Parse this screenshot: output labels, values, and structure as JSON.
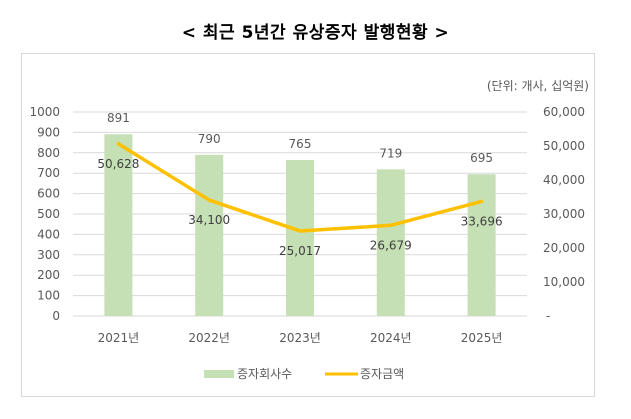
{
  "title": "< 최근 5년간 유상증자 발행현황 >",
  "unit_note": "(단위: 개사, 십억원)",
  "colors": {
    "bar": "#c5e0b4",
    "line": "#ffc000",
    "grid": "#d9d9d9",
    "text": "#595959"
  },
  "chart_data": {
    "type": "bar+line",
    "title": "< 최근 5년간 유상증자 발행현황 >",
    "categories": [
      "2021년",
      "2022년",
      "2023년",
      "2024년",
      "2025년"
    ],
    "series": [
      {
        "name": "증자회사수",
        "type": "bar",
        "axis": "left",
        "values": [
          891,
          790,
          765,
          719,
          695
        ],
        "labels": [
          "891",
          "790",
          "765",
          "719",
          "695"
        ]
      },
      {
        "name": "증자금액",
        "type": "line",
        "axis": "right",
        "values": [
          50628,
          34100,
          25017,
          26679,
          33696
        ],
        "labels": [
          "50,628",
          "34,100",
          "25,017",
          "26,679",
          "33,696"
        ]
      }
    ],
    "left_axis": {
      "ylim": [
        0,
        1000
      ],
      "ticks": [
        "0",
        "100",
        "200",
        "300",
        "400",
        "500",
        "600",
        "700",
        "800",
        "900",
        "1000"
      ]
    },
    "right_axis": {
      "ylim": [
        0,
        60000
      ],
      "ticks": [
        "-",
        "10,000",
        "20,000",
        "30,000",
        "40,000",
        "50,000",
        "60,000"
      ]
    },
    "annotation": "(단위: 개사, 십억원)",
    "grid": true,
    "legend_position": "bottom"
  }
}
